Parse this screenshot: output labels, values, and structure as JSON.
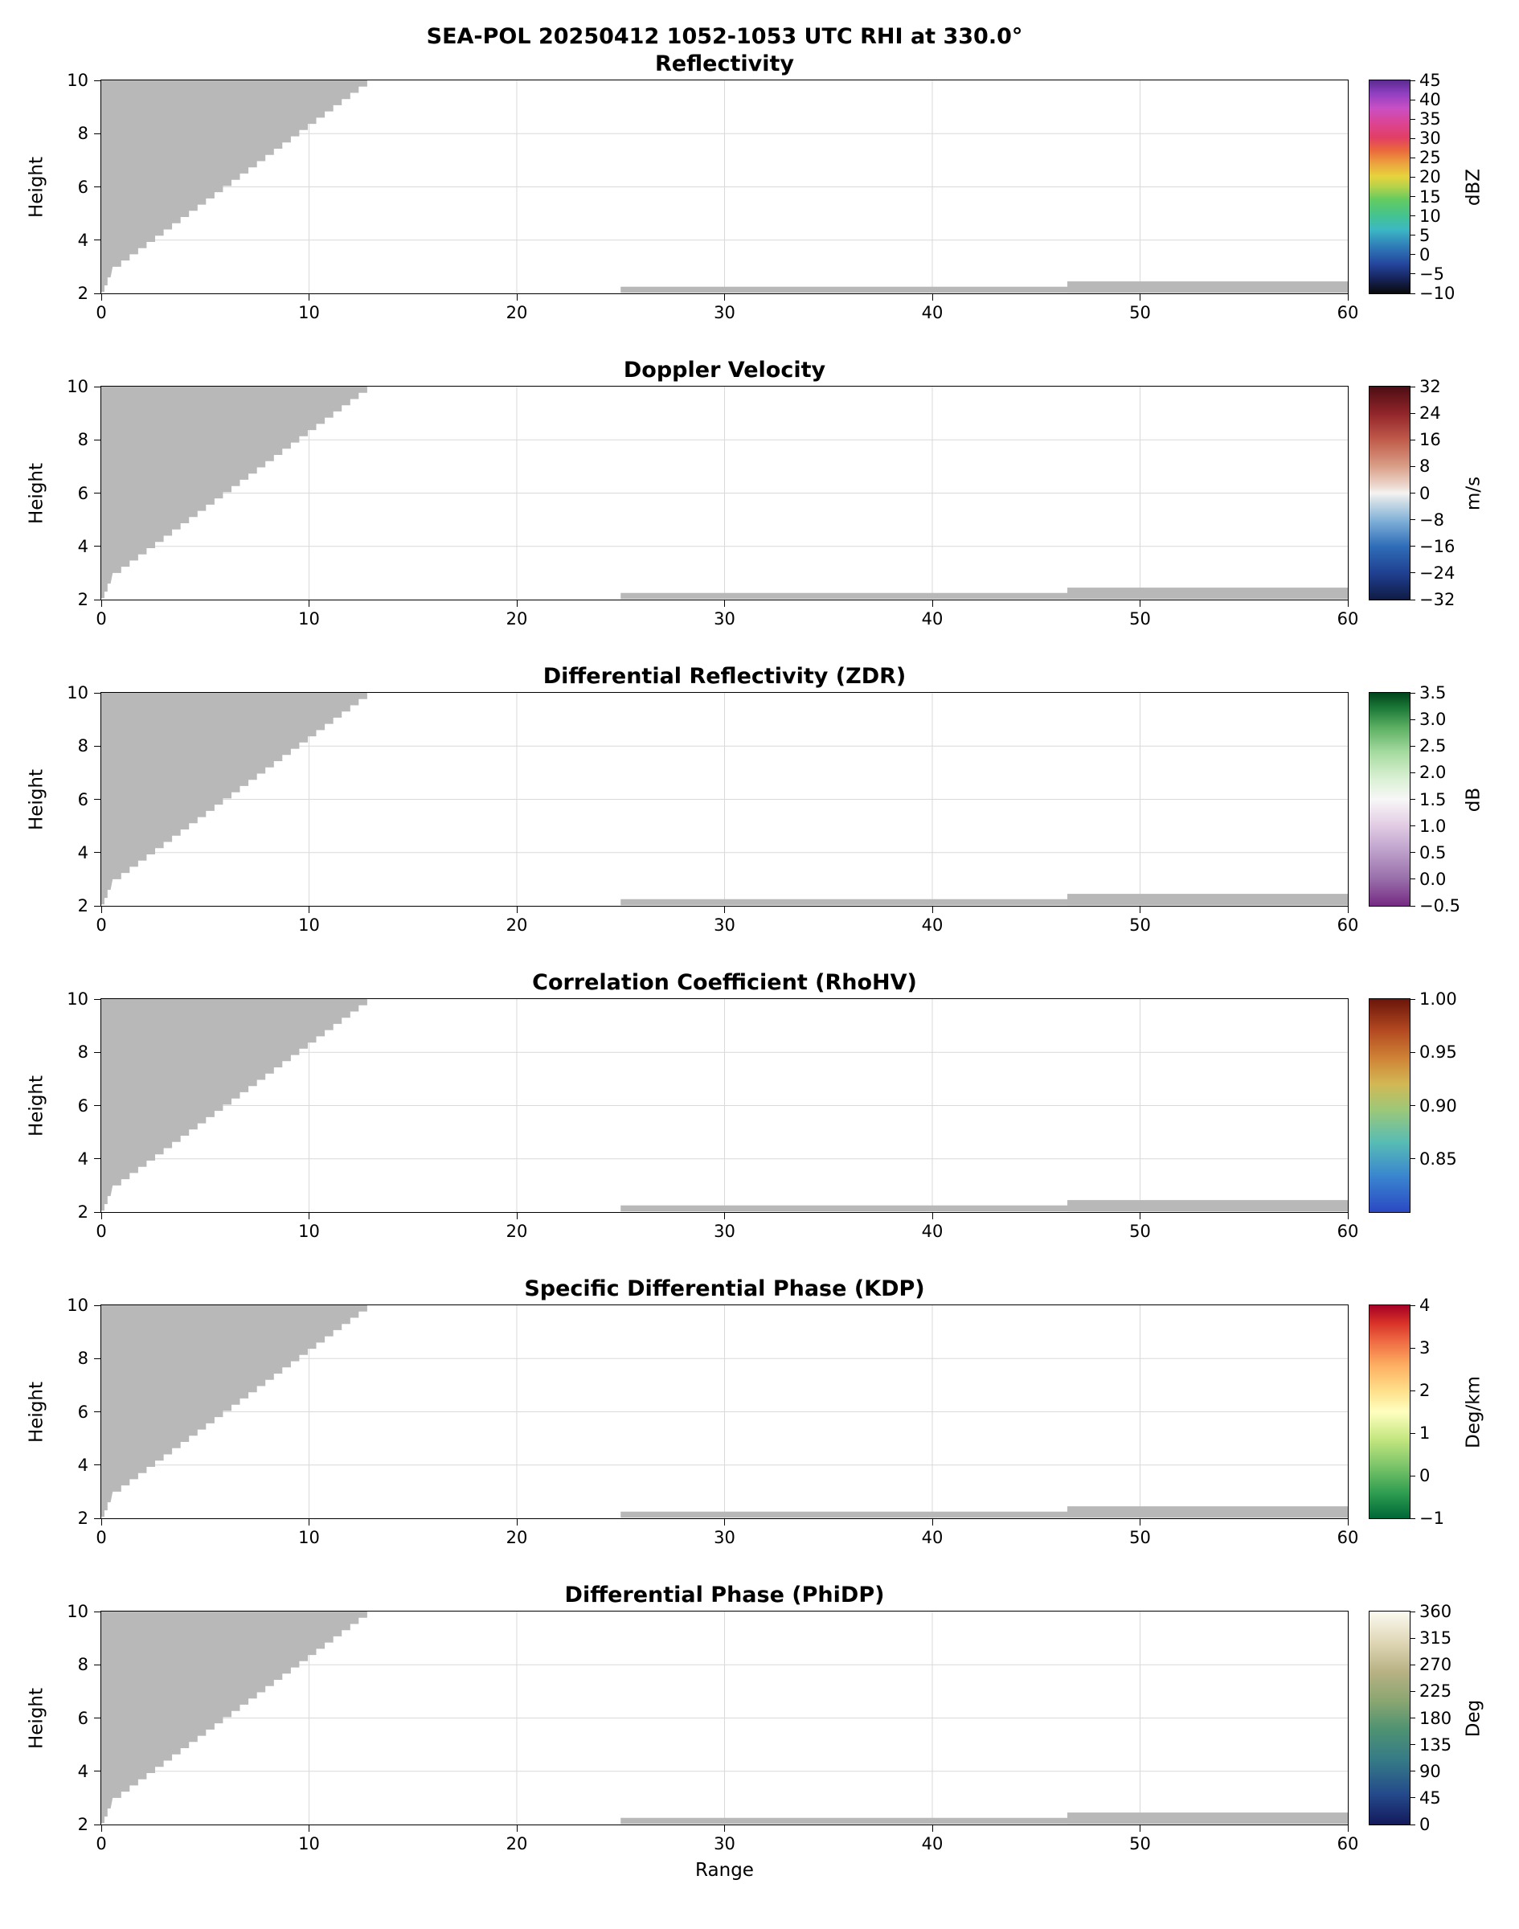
{
  "figure": {
    "suptitle": "SEA-POL 20250412 1052-1053 UTC RHI at 330.0°"
  },
  "chart_data": {
    "type": "heatmap",
    "subtype": "radar-RHI-multipanel",
    "xlabel": "Range",
    "ylabel": "Height",
    "x_range": [
      0,
      60
    ],
    "y_range": [
      2,
      10
    ],
    "x_ticks": [
      0,
      10,
      20,
      30,
      40,
      50,
      60
    ],
    "y_ticks": [
      2,
      4,
      6,
      8,
      10
    ],
    "grid": true,
    "masked_color": "#b8b8b8",
    "data_note": "No echo visible in any field; only gray no-data mask regions (upper-left blocked wedge and thin low-level strips at far range) are shown.",
    "masked_regions": {
      "wedge": {
        "top_y": 10,
        "top_x_right": 12.8,
        "stair_to": [
          0.55,
          3.0
        ],
        "steps": 30,
        "foot": [
          [
            0.45,
            2.6
          ],
          [
            0.3,
            2.6
          ],
          [
            0.3,
            2.3
          ],
          [
            0.15,
            2.3
          ],
          [
            0.15,
            2.05
          ],
          [
            0,
            2.05
          ]
        ]
      },
      "strips": [
        {
          "x0": 25,
          "x1": 60,
          "y0": 2.02,
          "y1": 2.25
        },
        {
          "x0": 46.5,
          "x1": 60,
          "y0": 2.02,
          "y1": 2.45
        }
      ]
    },
    "panels": [
      {
        "id": "reflectivity",
        "title": "Reflectivity",
        "unit": "dBZ",
        "cb_min": -10,
        "cb_max": 45,
        "cb_ticks": [
          {
            "v": 45,
            "label": "45"
          },
          {
            "v": 40,
            "label": "40"
          },
          {
            "v": 35,
            "label": "35"
          },
          {
            "v": 30,
            "label": "30"
          },
          {
            "v": 25,
            "label": "25"
          },
          {
            "v": 20,
            "label": "20"
          },
          {
            "v": 15,
            "label": "15"
          },
          {
            "v": 10,
            "label": "10"
          },
          {
            "v": 5,
            "label": "5"
          },
          {
            "v": 0,
            "label": "0"
          },
          {
            "v": -5,
            "label": "−5"
          },
          {
            "v": -10,
            "label": "−10"
          }
        ],
        "gradient": [
          [
            "#0a0a0a",
            0
          ],
          [
            "#16245c",
            0.07
          ],
          [
            "#25479e",
            0.14
          ],
          [
            "#2f7cb8",
            0.22
          ],
          [
            "#3cb8c4",
            0.3
          ],
          [
            "#45c48c",
            0.37
          ],
          [
            "#63cb61",
            0.44
          ],
          [
            "#b5d24b",
            0.5
          ],
          [
            "#e7d33c",
            0.55
          ],
          [
            "#eca33f",
            0.61
          ],
          [
            "#ea6a3b",
            0.67
          ],
          [
            "#e23f63",
            0.73
          ],
          [
            "#dc4493",
            0.8
          ],
          [
            "#c94fc4",
            0.87
          ],
          [
            "#8e3fc0",
            0.94
          ],
          [
            "#5b2b8f",
            1
          ]
        ]
      },
      {
        "id": "velocity",
        "title": "Doppler Velocity",
        "unit": "m/s",
        "cb_min": -32,
        "cb_max": 32,
        "cb_ticks": [
          {
            "v": 32,
            "label": "32"
          },
          {
            "v": 24,
            "label": "24"
          },
          {
            "v": 16,
            "label": "16"
          },
          {
            "v": 8,
            "label": "8"
          },
          {
            "v": 0,
            "label": "0"
          },
          {
            "v": -8,
            "label": "−8"
          },
          {
            "v": -16,
            "label": "−16"
          },
          {
            "v": -24,
            "label": "−24"
          },
          {
            "v": -32,
            "label": "−32"
          }
        ],
        "gradient": [
          [
            "#0f1b44",
            0
          ],
          [
            "#1f3f8f",
            0.12
          ],
          [
            "#2f6db8",
            0.25
          ],
          [
            "#7fb0d8",
            0.37
          ],
          [
            "#d8e2e8",
            0.47
          ],
          [
            "#f5f3f2",
            0.5
          ],
          [
            "#eddbd2",
            0.53
          ],
          [
            "#d89c85",
            0.63
          ],
          [
            "#c05b4a",
            0.75
          ],
          [
            "#93262b",
            0.87
          ],
          [
            "#4c0d13",
            1
          ]
        ]
      },
      {
        "id": "zdr",
        "title": "Differential Reflectivity (ZDR)",
        "unit": "dB",
        "cb_min": -0.5,
        "cb_max": 3.5,
        "cb_ticks": [
          {
            "v": 3.5,
            "label": "3.5"
          },
          {
            "v": 3.0,
            "label": "3.0"
          },
          {
            "v": 2.5,
            "label": "2.5"
          },
          {
            "v": 2.0,
            "label": "2.0"
          },
          {
            "v": 1.5,
            "label": "1.5"
          },
          {
            "v": 1.0,
            "label": "1.0"
          },
          {
            "v": 0.5,
            "label": "0.5"
          },
          {
            "v": 0.0,
            "label": "0.0"
          },
          {
            "v": -0.5,
            "label": "−0.5"
          }
        ],
        "gradient": [
          [
            "#762a83",
            0
          ],
          [
            "#9970ab",
            0.13
          ],
          [
            "#c2a5cf",
            0.27
          ],
          [
            "#e7d4e8",
            0.4
          ],
          [
            "#f7f7f7",
            0.5
          ],
          [
            "#d9f0d3",
            0.6
          ],
          [
            "#a6dba0",
            0.72
          ],
          [
            "#5aae61",
            0.84
          ],
          [
            "#1b7837",
            0.93
          ],
          [
            "#00441b",
            1
          ]
        ]
      },
      {
        "id": "rhohv",
        "title": "Correlation Coefficient (RhoHV)",
        "unit": "",
        "cb_min": 0.8,
        "cb_max": 1.0,
        "cb_ticks": [
          {
            "v": 1.0,
            "label": "1.00"
          },
          {
            "v": 0.95,
            "label": "0.95"
          },
          {
            "v": 0.9,
            "label": "0.90"
          },
          {
            "v": 0.85,
            "label": "0.85"
          }
        ],
        "gradient": [
          [
            "#2b49c4",
            0
          ],
          [
            "#3a86cf",
            0.17
          ],
          [
            "#58bdb4",
            0.33
          ],
          [
            "#9cc878",
            0.48
          ],
          [
            "#d2b855",
            0.6
          ],
          [
            "#cf8436",
            0.72
          ],
          [
            "#b44a21",
            0.85
          ],
          [
            "#6b150a",
            1
          ]
        ]
      },
      {
        "id": "kdp",
        "title": "Specific Differential Phase (KDP)",
        "unit": "Deg/km",
        "cb_min": -1,
        "cb_max": 4,
        "cb_ticks": [
          {
            "v": 4,
            "label": "4"
          },
          {
            "v": 3,
            "label": "3"
          },
          {
            "v": 2,
            "label": "2"
          },
          {
            "v": 1,
            "label": "1"
          },
          {
            "v": 0,
            "label": "0"
          },
          {
            "v": -1,
            "label": "−1"
          }
        ],
        "gradient": [
          [
            "#006837",
            0
          ],
          [
            "#2f9e51",
            0.12
          ],
          [
            "#7ec66a",
            0.25
          ],
          [
            "#c3e67f",
            0.37
          ],
          [
            "#ffffbf",
            0.5
          ],
          [
            "#fedf8a",
            0.6
          ],
          [
            "#fdae61",
            0.72
          ],
          [
            "#ef6b43",
            0.83
          ],
          [
            "#d73027",
            0.92
          ],
          [
            "#a50026",
            1
          ]
        ]
      },
      {
        "id": "phidp",
        "title": "Differential Phase (PhiDP)",
        "unit": "Deg",
        "cb_min": 0,
        "cb_max": 360,
        "cb_ticks": [
          {
            "v": 360,
            "label": "360"
          },
          {
            "v": 315,
            "label": "315"
          },
          {
            "v": 270,
            "label": "270"
          },
          {
            "v": 225,
            "label": "225"
          },
          {
            "v": 180,
            "label": "180"
          },
          {
            "v": 135,
            "label": "135"
          },
          {
            "v": 90,
            "label": "90"
          },
          {
            "v": 45,
            "label": "45"
          },
          {
            "v": 0,
            "label": "0"
          }
        ],
        "gradient": [
          [
            "#131a5c",
            0
          ],
          [
            "#24498a",
            0.14
          ],
          [
            "#357a87",
            0.3
          ],
          [
            "#4f9372",
            0.45
          ],
          [
            "#8aa671",
            0.58
          ],
          [
            "#b9b285",
            0.72
          ],
          [
            "#ded5b4",
            0.85
          ],
          [
            "#fbfaf0",
            1
          ]
        ]
      }
    ]
  }
}
